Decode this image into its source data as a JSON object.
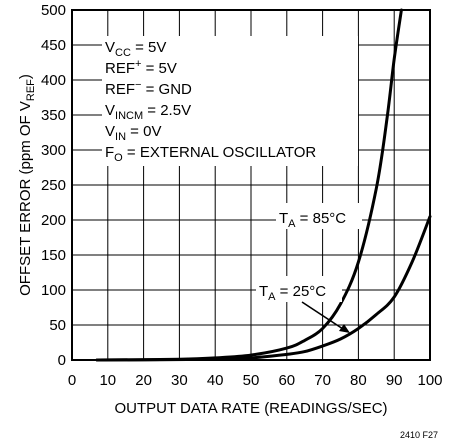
{
  "figure_id": "2410 F27",
  "chart_data": {
    "type": "line",
    "xlabel": "OUTPUT DATA RATE (READINGS/SEC)",
    "ylabel": {
      "main": "OFFSET ERROR (ppm OF V",
      "sub": "REF",
      "end": ")"
    },
    "xlim": [
      0,
      100
    ],
    "ylim": [
      0,
      500
    ],
    "x_ticks": [
      "0",
      "10",
      "20",
      "30",
      "40",
      "50",
      "60",
      "70",
      "80",
      "90",
      "100"
    ],
    "y_ticks": [
      "0",
      "50",
      "100",
      "150",
      "200",
      "250",
      "300",
      "350",
      "400",
      "450",
      "500"
    ],
    "grid": true,
    "conditions": [
      {
        "main": "V",
        "sub": "CC",
        "rest": " = 5V"
      },
      {
        "main": "REF",
        "sup": "+",
        "rest": " = 5V"
      },
      {
        "main": "REF",
        "sup": "−",
        "rest": " = GND"
      },
      {
        "main": "V",
        "sub": "INCM",
        "rest": " = 2.5V"
      },
      {
        "main": "V",
        "sub": "IN",
        "rest": " = 0V"
      },
      {
        "main": "F",
        "sub": "O",
        "rest": " = EXTERNAL OSCILLATOR"
      }
    ],
    "series": [
      {
        "name": {
          "main": "T",
          "sub": "A",
          "rest": " = 85°C"
        },
        "x": [
          7,
          30,
          40,
          50,
          60,
          65,
          70,
          75,
          80,
          85,
          88,
          90,
          92
        ],
        "y": [
          0,
          1,
          3,
          7,
          17,
          28,
          45,
          80,
          140,
          245,
          345,
          430,
          500
        ]
      },
      {
        "name": {
          "main": "T",
          "sub": "A",
          "rest": " = 25°C"
        },
        "x": [
          7,
          40,
          50,
          60,
          65,
          70,
          75,
          80,
          85,
          90,
          95,
          100
        ],
        "y": [
          0,
          1,
          3,
          8,
          12,
          20,
          30,
          45,
          65,
          90,
          140,
          205
        ]
      }
    ]
  }
}
